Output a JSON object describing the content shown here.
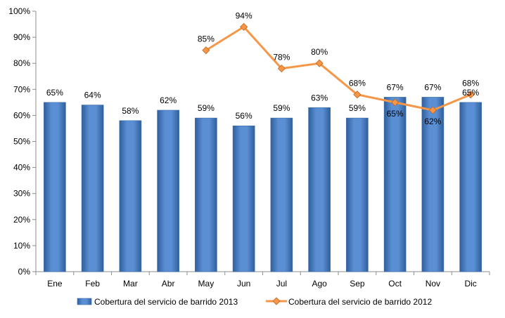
{
  "chart_data": {
    "type": "bar+line",
    "categories": [
      "Ene",
      "Feb",
      "Mar",
      "Abr",
      "May",
      "Jun",
      "Jul",
      "Ago",
      "Sep",
      "Oct",
      "Nov",
      "Dic"
    ],
    "series": [
      {
        "name": "Cobertura del servicio de barrido 2013",
        "type": "bar",
        "values": [
          65,
          64,
          58,
          62,
          59,
          56,
          59,
          63,
          59,
          67,
          67,
          65
        ],
        "labels": [
          "65%",
          "64%",
          "58%",
          "62%",
          "59%",
          "56%",
          "59%",
          "63%",
          "59%",
          "67%",
          "67%",
          "65%"
        ],
        "color": "#4F81BD"
      },
      {
        "name": "Cobertura del servicio de barrido 2012",
        "type": "line",
        "values": [
          null,
          null,
          null,
          null,
          85,
          94,
          78,
          80,
          68,
          65,
          62,
          68
        ],
        "labels": [
          "",
          "",
          "",
          "",
          "85%",
          "94%",
          "78%",
          "80%",
          "68%",
          "65%",
          "62%",
          "68%"
        ],
        "color": "#F79646"
      }
    ],
    "yticks": [
      "0%",
      "10%",
      "20%",
      "30%",
      "40%",
      "50%",
      "60%",
      "70%",
      "80%",
      "90%",
      "100%"
    ],
    "ylim": [
      0,
      100
    ],
    "grid": false,
    "legend": "bottom"
  }
}
